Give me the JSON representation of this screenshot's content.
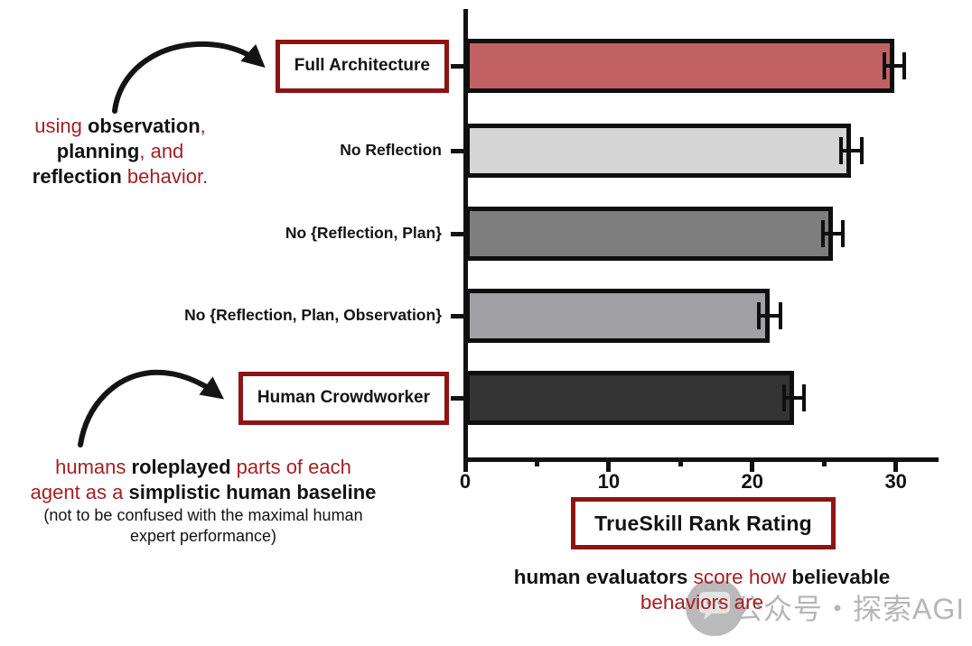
{
  "colors": {
    "bar_border": "#0f0f0f",
    "axis_black": "#121212",
    "box_border": "#8e1313",
    "text_red": "#a32024",
    "text_black": "#131313",
    "watermark_gray": "#b6b6b6"
  },
  "chart_data": {
    "type": "bar",
    "orientation": "horizontal",
    "categories": [
      "Full Architecture",
      "No Reflection",
      "No {Reflection, Plan}",
      "No {Reflection, Plan, Observation}",
      "Human Crowdworker"
    ],
    "values": [
      29.9,
      26.9,
      25.6,
      21.2,
      22.9
    ],
    "errors": [
      0.7,
      0.7,
      0.7,
      0.75,
      0.7
    ],
    "bar_colors": [
      "#c26163",
      "#d5d5d5",
      "#7e7e7e",
      "#a0a0a5",
      "#343434"
    ],
    "boxed_categories": [
      true,
      false,
      false,
      false,
      true
    ],
    "xlabel": "TrueSkill Rank Rating",
    "ylabel": "",
    "xlim": [
      0,
      33
    ],
    "xticks": [
      0,
      10,
      20,
      30
    ],
    "minor_xticks": [
      5,
      15,
      25
    ],
    "grid": false,
    "legend": "none"
  },
  "annotation_full": {
    "lines": [
      [
        {
          "t": "using ",
          "c": "r"
        },
        {
          "t": "observation",
          "c": "k",
          "b": true
        },
        {
          "t": ",",
          "c": "r"
        }
      ],
      [
        {
          "t": "planning",
          "c": "k",
          "b": true
        },
        {
          "t": ", and",
          "c": "r"
        }
      ],
      [
        {
          "t": "reflection",
          "c": "k",
          "b": true
        },
        {
          "t": " behavior.",
          "c": "r"
        }
      ]
    ]
  },
  "annotation_human": {
    "lines": [
      [
        {
          "t": "humans ",
          "c": "r"
        },
        {
          "t": "roleplayed",
          "c": "k",
          "b": true
        },
        {
          "t": " parts of each",
          "c": "r"
        }
      ],
      [
        {
          "t": "agent as a ",
          "c": "r"
        },
        {
          "t": "simplistic human baseline",
          "c": "k",
          "b": true
        }
      ],
      [
        {
          "t": "(not to be confused with the maximal human",
          "c": "k",
          "small": true
        }
      ],
      [
        {
          "t": "expert performance)",
          "c": "k",
          "small": true
        }
      ]
    ]
  },
  "caption": {
    "lines": [
      [
        {
          "t": "human evaluators ",
          "c": "k",
          "b": true
        },
        {
          "t": "score how ",
          "c": "r"
        },
        {
          "t": "believable",
          "c": "k",
          "b": true
        }
      ],
      [
        {
          "t": "behaviors are",
          "c": "r"
        }
      ]
    ]
  },
  "watermark": {
    "text": "公众号・探索AGI",
    "logo": "chat-bubble-logo"
  }
}
